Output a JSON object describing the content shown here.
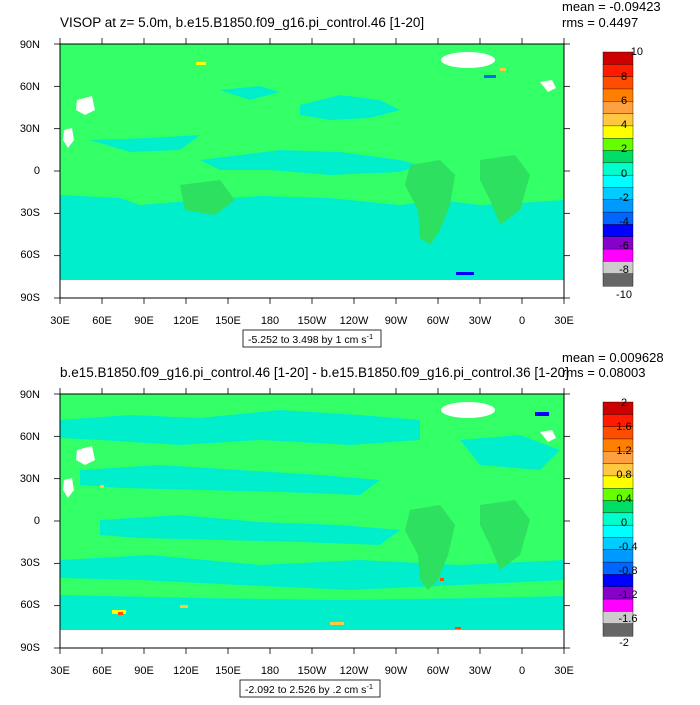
{
  "panels": [
    {
      "title": "VISOP at z=   5.0m, b.e15.B1850.f09_g16.pi_control.46 [1-20]",
      "stats": [
        "mean = -0.09423",
        "rms = 0.4497"
      ],
      "range_label": "-5.252 to 3.498 by 1 cm s",
      "range_sup": "-1",
      "colorbar_labels": [
        "10",
        "8",
        "6",
        "4",
        "2",
        "0",
        "-2",
        "-4",
        "-6",
        "-8",
        "-10"
      ]
    },
    {
      "title": "b.e15.B1850.f09_g16.pi_control.46 [1-20] - b.e15.B1850.f09_g16.pi_control.36 [1-20]",
      "stats": [
        "mean = 0.009628",
        "rms = 0.08003"
      ],
      "range_label": "-2.092 to 2.526 by .2 cm s",
      "range_sup": "-1",
      "colorbar_labels": [
        "2",
        "1.6",
        "1.2",
        "0.8",
        "0.4",
        "0",
        "-0.4",
        "-0.8",
        "-1.2",
        "-1.6",
        "-2"
      ]
    }
  ],
  "lat_labels": [
    "90N",
    "60N",
    "30N",
    "0",
    "30S",
    "60S",
    "90S"
  ],
  "lon_labels": [
    "30E",
    "60E",
    "90E",
    "120E",
    "150E",
    "180",
    "150W",
    "120W",
    "90W",
    "60W",
    "30W",
    "0",
    "30E"
  ],
  "colorbar_colors": [
    "#cc0000",
    "#ff1a00",
    "#ff4d00",
    "#ff8000",
    "#ffa040",
    "#ffc840",
    "#ffff00",
    "#66ff00",
    "#00dd66",
    "#00ffcc",
    "#00ffff",
    "#00ccff",
    "#0099ff",
    "#0066ff",
    "#0000ff",
    "#8800cc",
    "#ff00ff",
    "#cccccc",
    "#666666"
  ],
  "colors": {
    "ocean_base": "#33ff66",
    "ocean_cool": "#00eecc",
    "land_mask": "#ffffff"
  }
}
